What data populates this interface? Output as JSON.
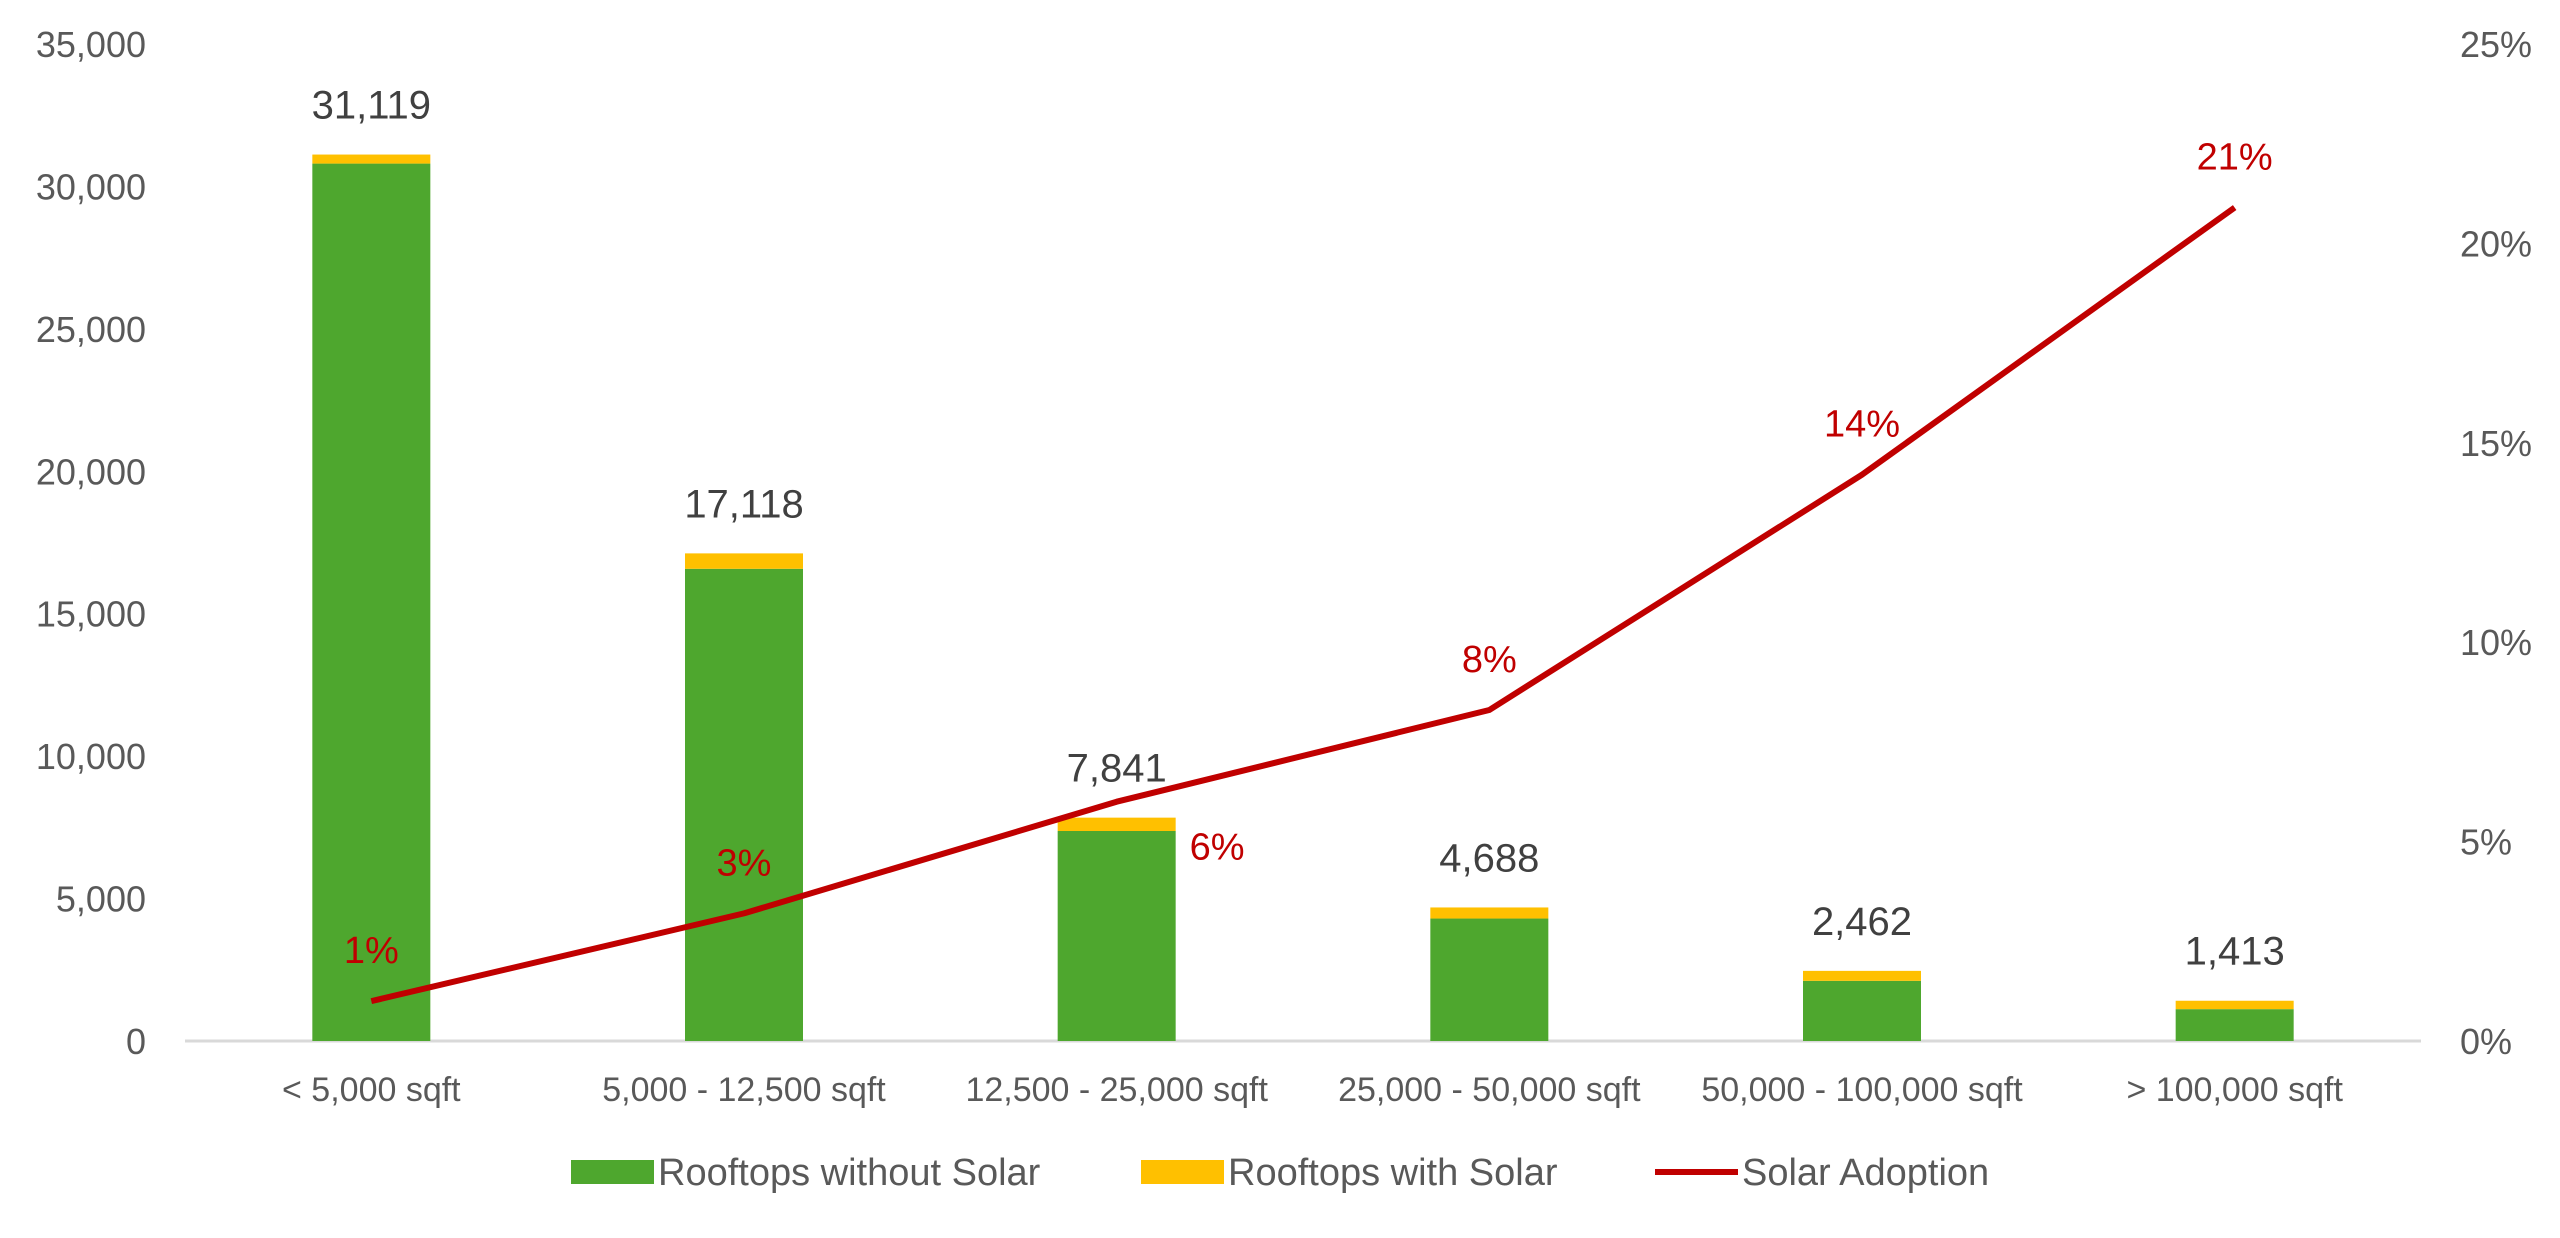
{
  "chart_data": {
    "type": "bar",
    "subtype": "stacked bar with line on secondary axis",
    "categories": [
      "< 5,000 sqft",
      "5,000 - 12,500 sqft",
      "12,500 - 25,000 sqft",
      "25,000 - 50,000 sqft",
      "50,000 - 100,000 sqft",
      "> 100,000 sqft"
    ],
    "series": [
      {
        "name": "Rooftops without Solar",
        "type": "bar",
        "axis": "left",
        "color": "#4EA72E",
        "values": [
          30802,
          16577,
          7372,
          4299,
          2112,
          1118
        ]
      },
      {
        "name": "Rooftops with Solar",
        "type": "bar",
        "axis": "left",
        "color": "#FFC000",
        "values": [
          317,
          541,
          469,
          389,
          350,
          295
        ]
      },
      {
        "name": "Solar Adoption",
        "type": "line",
        "axis": "right",
        "color": "#C00000",
        "values": [
          1.0,
          3.2,
          6.0,
          8.3,
          14.2,
          20.9
        ],
        "labels": [
          "1%",
          "3%",
          "6%",
          "8%",
          "14%",
          "21%"
        ]
      }
    ],
    "total_labels": [
      "31,119",
      "17,118",
      "7,841",
      "4,688",
      "2,462",
      "1,413"
    ],
    "ylim": [
      0,
      35000
    ],
    "y_ticks": [
      "0",
      "5,000",
      "10,000",
      "15,000",
      "20,000",
      "25,000",
      "30,000",
      "35,000"
    ],
    "y2lim": [
      0,
      25
    ],
    "y2_ticks": [
      "0%",
      "5%",
      "10%",
      "15%",
      "20%",
      "25%"
    ],
    "grid": false,
    "legend": "bottom",
    "title": "",
    "xlabel": "",
    "ylabel": ""
  }
}
